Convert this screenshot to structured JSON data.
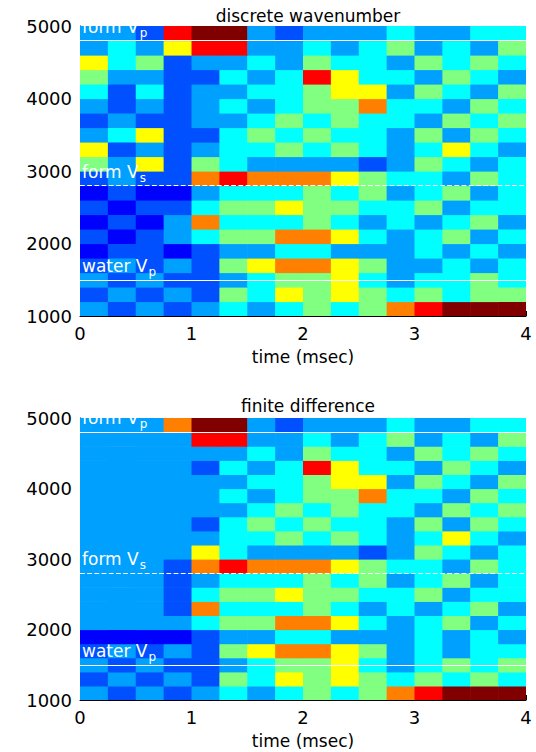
{
  "chart_data": [
    {
      "type": "heatmap",
      "title": "discrete wavenumber",
      "x_label": "time (msec)",
      "xlim": [
        0,
        4
      ],
      "xticks": [
        0,
        1,
        2,
        3,
        4
      ],
      "ylim": [
        1000,
        5000
      ],
      "yticks": [
        1000,
        2000,
        3000,
        4000,
        5000
      ],
      "grid": false,
      "x_edges": [
        0,
        0.25,
        0.5,
        0.75,
        1,
        1.25,
        1.5,
        1.75,
        2,
        2.25,
        2.5,
        2.75,
        3,
        3.25,
        3.5,
        3.75,
        4
      ],
      "y_edges": [
        1000,
        1200,
        1400,
        1600,
        1800,
        2000,
        2200,
        2400,
        2600,
        2800,
        3000,
        3200,
        3400,
        3600,
        3800,
        4000,
        4200,
        4400,
        4600,
        4800,
        5000
      ],
      "value_range": [
        0,
        9
      ],
      "z": [
        [
          3,
          2,
          3,
          2,
          3,
          4,
          3,
          4,
          5,
          4,
          5,
          7,
          8,
          9,
          9,
          9
        ],
        [
          2,
          3,
          2,
          3,
          2,
          5,
          4,
          6,
          5,
          6,
          5,
          4,
          5,
          4,
          5,
          5
        ],
        [
          3,
          2,
          3,
          2,
          2,
          3,
          4,
          5,
          5,
          6,
          4,
          3,
          4,
          4,
          5,
          4
        ],
        [
          2,
          3,
          2,
          3,
          2,
          5,
          6,
          7,
          7,
          6,
          5,
          3,
          3,
          4,
          3,
          4
        ],
        [
          1,
          2,
          2,
          1,
          2,
          3,
          3,
          4,
          4,
          3,
          3,
          3,
          4,
          3,
          4,
          3
        ],
        [
          2,
          1,
          2,
          3,
          4,
          5,
          5,
          7,
          7,
          6,
          4,
          3,
          4,
          5,
          3,
          4
        ],
        [
          1,
          2,
          1,
          3,
          7,
          4,
          4,
          4,
          5,
          4,
          3,
          4,
          3,
          4,
          5,
          3
        ],
        [
          2,
          1,
          2,
          2,
          4,
          5,
          5,
          6,
          5,
          5,
          4,
          4,
          5,
          3,
          4,
          4
        ],
        [
          1,
          2,
          1,
          1,
          3,
          4,
          4,
          4,
          5,
          4,
          5,
          3,
          4,
          5,
          3,
          4
        ],
        [
          2,
          3,
          2,
          2,
          7,
          8,
          7,
          7,
          7,
          6,
          5,
          4,
          4,
          3,
          5,
          4
        ],
        [
          5,
          3,
          6,
          2,
          5,
          4,
          3,
          3,
          3,
          3,
          2,
          3,
          5,
          4,
          3,
          4
        ],
        [
          6,
          2,
          3,
          2,
          3,
          4,
          4,
          5,
          4,
          5,
          4,
          3,
          4,
          6,
          4,
          3
        ],
        [
          3,
          4,
          6,
          2,
          2,
          4,
          5,
          4,
          5,
          4,
          4,
          3,
          5,
          3,
          5,
          4
        ],
        [
          2,
          3,
          2,
          2,
          3,
          3,
          4,
          5,
          4,
          5,
          4,
          4,
          3,
          5,
          4,
          5
        ],
        [
          3,
          2,
          3,
          2,
          3,
          4,
          3,
          4,
          5,
          5,
          7,
          4,
          4,
          3,
          5,
          4
        ],
        [
          4,
          2,
          4,
          2,
          3,
          3,
          4,
          4,
          5,
          6,
          6,
          3,
          5,
          4,
          3,
          5
        ],
        [
          5,
          3,
          3,
          2,
          2,
          4,
          3,
          4,
          8,
          6,
          4,
          4,
          3,
          5,
          4,
          3
        ],
        [
          6,
          4,
          5,
          2,
          3,
          3,
          4,
          3,
          5,
          4,
          4,
          3,
          5,
          4,
          5,
          4
        ],
        [
          3,
          4,
          3,
          6,
          8,
          8,
          3,
          3,
          4,
          3,
          4,
          5,
          3,
          4,
          3,
          5
        ],
        [
          3,
          3,
          2,
          8,
          9,
          9,
          3,
          2,
          3,
          3,
          3,
          4,
          3,
          3,
          4,
          4
        ]
      ],
      "annotations": [
        {
          "text": "form V",
          "subscript": "p",
          "y": 4800,
          "line_style": "solid",
          "color": "#ffffff"
        },
        {
          "text": "form V",
          "subscript": "s",
          "y": 2800,
          "line_style": "dashed",
          "color": "#ffffff"
        },
        {
          "text": "water V",
          "subscript": "p",
          "y": 1500,
          "line_style": "solid",
          "color": "#ffffff"
        }
      ]
    },
    {
      "type": "heatmap",
      "title": "finite difference",
      "x_label": "time (msec)",
      "xlim": [
        0,
        4
      ],
      "xticks": [
        0,
        1,
        2,
        3,
        4
      ],
      "ylim": [
        1000,
        5000
      ],
      "yticks": [
        1000,
        2000,
        3000,
        4000,
        5000
      ],
      "grid": false,
      "x_edges": [
        0,
        0.25,
        0.5,
        0.75,
        1,
        1.25,
        1.5,
        1.75,
        2,
        2.25,
        2.5,
        2.75,
        3,
        3.25,
        3.5,
        3.75,
        4
      ],
      "y_edges": [
        1000,
        1200,
        1400,
        1600,
        1800,
        2000,
        2200,
        2400,
        2600,
        2800,
        3000,
        3200,
        3400,
        3600,
        3800,
        4000,
        4200,
        4400,
        4600,
        4800,
        5000
      ],
      "value_range": [
        0,
        9
      ],
      "z": [
        [
          3,
          2,
          3,
          2,
          3,
          4,
          3,
          4,
          5,
          4,
          5,
          7,
          8,
          9,
          9,
          9
        ],
        [
          2,
          3,
          2,
          3,
          2,
          5,
          4,
          6,
          5,
          6,
          5,
          4,
          5,
          4,
          5,
          4
        ],
        [
          3,
          2,
          3,
          2,
          2,
          3,
          4,
          5,
          5,
          6,
          4,
          3,
          4,
          5,
          4,
          5
        ],
        [
          2,
          3,
          2,
          3,
          2,
          5,
          6,
          7,
          7,
          6,
          5,
          3,
          4,
          3,
          4,
          4
        ],
        [
          1,
          1,
          1,
          1,
          2,
          3,
          3,
          4,
          4,
          3,
          3,
          3,
          4,
          3,
          4,
          3
        ],
        [
          3,
          3,
          3,
          3,
          4,
          5,
          5,
          7,
          7,
          6,
          4,
          3,
          4,
          5,
          3,
          4
        ],
        [
          3,
          3,
          3,
          2,
          7,
          4,
          4,
          4,
          5,
          4,
          3,
          4,
          3,
          4,
          5,
          3
        ],
        [
          3,
          3,
          3,
          2,
          4,
          5,
          5,
          6,
          5,
          5,
          4,
          4,
          5,
          3,
          4,
          4
        ],
        [
          3,
          3,
          3,
          2,
          3,
          4,
          4,
          4,
          5,
          4,
          5,
          3,
          4,
          5,
          3,
          4
        ],
        [
          3,
          3,
          3,
          2,
          7,
          8,
          7,
          7,
          7,
          6,
          5,
          4,
          4,
          3,
          5,
          4
        ],
        [
          3,
          3,
          3,
          3,
          6,
          4,
          3,
          3,
          3,
          3,
          2,
          3,
          5,
          4,
          3,
          4
        ],
        [
          3,
          3,
          3,
          3,
          3,
          4,
          4,
          5,
          4,
          5,
          4,
          3,
          4,
          6,
          4,
          3
        ],
        [
          3,
          3,
          3,
          3,
          2,
          4,
          5,
          4,
          5,
          4,
          4,
          3,
          5,
          3,
          5,
          4
        ],
        [
          3,
          3,
          3,
          3,
          3,
          3,
          4,
          5,
          4,
          5,
          4,
          4,
          3,
          5,
          4,
          5
        ],
        [
          3,
          3,
          3,
          3,
          3,
          4,
          3,
          4,
          5,
          5,
          7,
          4,
          4,
          3,
          5,
          4
        ],
        [
          3,
          3,
          3,
          3,
          3,
          3,
          4,
          4,
          5,
          6,
          6,
          3,
          5,
          4,
          3,
          5
        ],
        [
          3,
          3,
          3,
          3,
          2,
          4,
          3,
          4,
          8,
          6,
          4,
          4,
          3,
          5,
          4,
          3
        ],
        [
          3,
          3,
          3,
          3,
          3,
          3,
          4,
          3,
          5,
          4,
          4,
          3,
          5,
          4,
          5,
          4
        ],
        [
          3,
          3,
          3,
          3,
          8,
          8,
          3,
          3,
          4,
          3,
          4,
          5,
          3,
          4,
          3,
          5
        ],
        [
          3,
          3,
          3,
          7,
          9,
          9,
          3,
          2,
          3,
          3,
          3,
          4,
          3,
          3,
          4,
          4
        ]
      ],
      "annotations": [
        {
          "text": "form V",
          "subscript": "p",
          "y": 4800,
          "line_style": "solid",
          "color": "#ffffff"
        },
        {
          "text": "form V",
          "subscript": "s",
          "y": 2800,
          "line_style": "dashed",
          "color": "#ffffff"
        },
        {
          "text": "water V",
          "subscript": "p",
          "y": 1500,
          "line_style": "solid",
          "color": "#ffffff"
        }
      ]
    }
  ]
}
